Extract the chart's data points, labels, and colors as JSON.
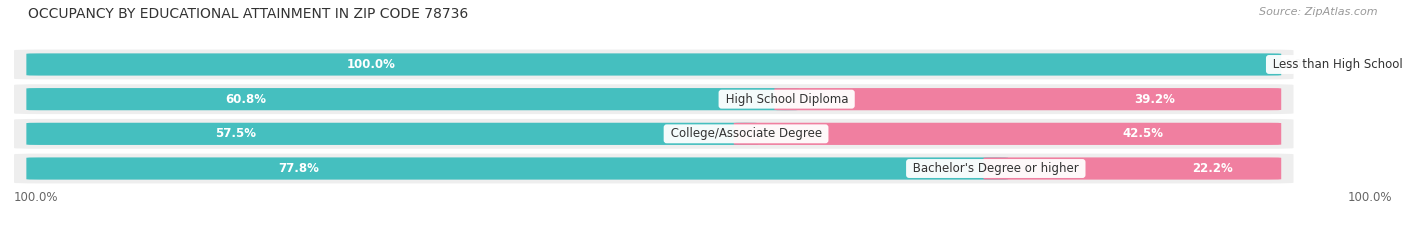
{
  "title": "OCCUPANCY BY EDUCATIONAL ATTAINMENT IN ZIP CODE 78736",
  "source": "Source: ZipAtlas.com",
  "categories": [
    "Less than High School",
    "High School Diploma",
    "College/Associate Degree",
    "Bachelor's Degree or higher"
  ],
  "owner_pct": [
    100.0,
    60.8,
    57.5,
    77.8
  ],
  "renter_pct": [
    0.0,
    39.2,
    42.5,
    22.2
  ],
  "owner_color": "#45BFBF",
  "renter_color": "#F07FA0",
  "row_bg_color": "#EEEEEE",
  "title_fontsize": 10,
  "source_fontsize": 8,
  "label_fontsize": 8.5,
  "pct_fontsize": 8.5,
  "legend_fontsize": 9,
  "axis_label_fontsize": 8.5,
  "left_axis_label": "100.0%",
  "right_axis_label": "100.0%",
  "fig_width": 14.06,
  "fig_height": 2.33,
  "dpi": 100
}
